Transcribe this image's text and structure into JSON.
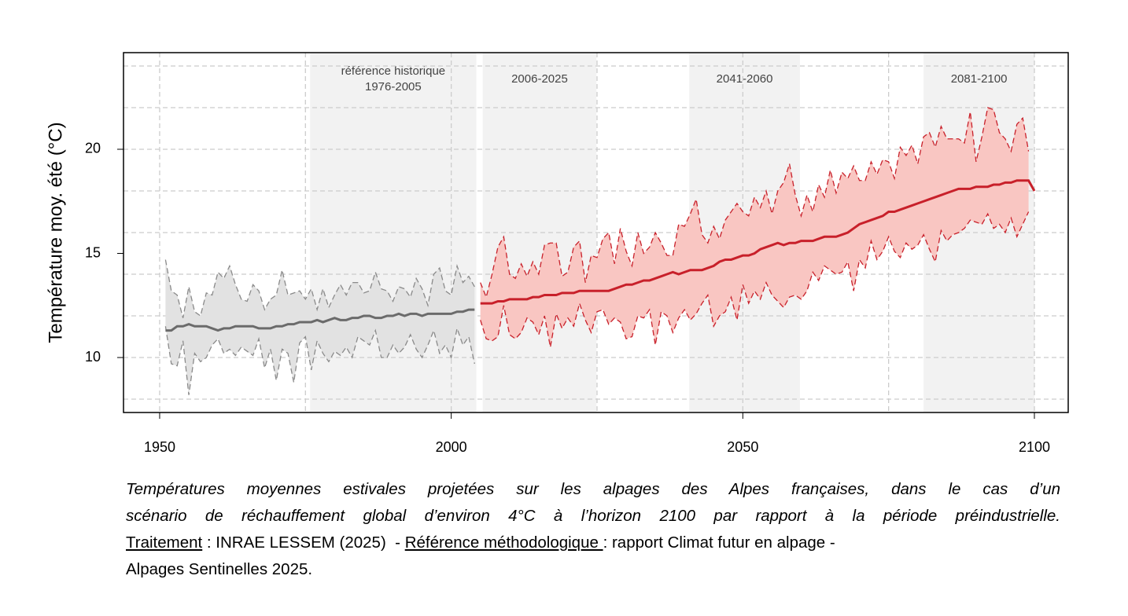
{
  "chart_data": {
    "type": "line",
    "ylabel": "Température moy. été (°C)",
    "xlim": [
      1943.8,
      2105.8
    ],
    "ylim": [
      7.36,
      24.64
    ],
    "xticks": [
      1950,
      2000,
      2050,
      2100
    ],
    "yticks": [
      10,
      15,
      20
    ],
    "xgrid": [
      1950,
      1975,
      2000,
      2025,
      2050,
      2075,
      2100
    ],
    "ygrid": [
      8,
      10,
      12,
      14,
      16,
      18,
      20,
      22,
      24
    ],
    "grid_color": "#cccccc",
    "period_color": "#f2f2f2",
    "periods": [
      {
        "label": [
          "référence historique",
          "1976-2005"
        ],
        "start": 1975.8,
        "end": 2004.3
      },
      {
        "label": [
          "2006-2025"
        ],
        "start": 2005.4,
        "end": 2024.9
      },
      {
        "label": [
          "2041-2060"
        ],
        "start": 2040.8,
        "end": 2059.8
      },
      {
        "label": [
          "2081-2100"
        ],
        "start": 2081.0,
        "end": 2100
      }
    ],
    "series": [
      {
        "color": "#6b6b6b",
        "band_color": "#e2e2e2",
        "range_color": "#8a8a8a",
        "x": [
          1951,
          1952,
          1953,
          1954,
          1955,
          1956,
          1957,
          1958,
          1959,
          1960,
          1961,
          1962,
          1963,
          1964,
          1965,
          1966,
          1967,
          1968,
          1969,
          1970,
          1971,
          1972,
          1973,
          1974,
          1975,
          1976,
          1977,
          1978,
          1979,
          1980,
          1981,
          1982,
          1983,
          1984,
          1985,
          1986,
          1987,
          1988,
          1989,
          1990,
          1991,
          1992,
          1993,
          1994,
          1995,
          1996,
          1997,
          1998,
          1999,
          2000,
          2001,
          2002,
          2003,
          2004
        ],
        "values": [
          11.3,
          11.3,
          11.5,
          11.5,
          11.6,
          11.5,
          11.5,
          11.5,
          11.4,
          11.3,
          11.4,
          11.4,
          11.5,
          11.5,
          11.5,
          11.5,
          11.4,
          11.4,
          11.4,
          11.5,
          11.5,
          11.6,
          11.6,
          11.7,
          11.7,
          11.7,
          11.8,
          11.7,
          11.8,
          11.9,
          11.8,
          11.8,
          11.9,
          11.9,
          12.0,
          12.0,
          11.9,
          11.9,
          12.0,
          12.0,
          12.1,
          12.0,
          12.1,
          12.1,
          12.0,
          12.1,
          12.1,
          12.1,
          12.1,
          12.1,
          12.2,
          12.2,
          12.3,
          12.3
        ],
        "high": [
          14.7,
          13.2,
          13.0,
          11.9,
          13.4,
          12.2,
          12.0,
          13.1,
          13.0,
          14.1,
          13.8,
          14.4,
          13.5,
          12.8,
          12.7,
          13.5,
          13.2,
          12.3,
          12.8,
          13.0,
          14.2,
          13.0,
          13.1,
          13.2,
          12.8,
          13.3,
          12.3,
          13.3,
          12.4,
          13.0,
          13.5,
          13.0,
          13.6,
          13.6,
          13.1,
          13.2,
          14.1,
          13.3,
          13.2,
          12.7,
          13.4,
          13.3,
          12.9,
          13.8,
          13.3,
          12.5,
          14.0,
          14.3,
          13.2,
          13.0,
          14.4,
          13.6,
          13.9,
          13.4
        ],
        "low": [
          11.5,
          9.7,
          9.6,
          10.8,
          8.2,
          10.2,
          9.8,
          10.0,
          10.6,
          10.9,
          10.2,
          10.4,
          10.1,
          10.5,
          10.3,
          10.1,
          10.9,
          9.5,
          10.4,
          8.9,
          10.4,
          10.2,
          8.8,
          10.7,
          11.0,
          9.4,
          10.8,
          10.2,
          9.8,
          10.3,
          10.1,
          10.5,
          10.0,
          11.0,
          10.8,
          10.6,
          11.3,
          10.0,
          10.0,
          10.6,
          10.2,
          10.5,
          11.1,
          10.4,
          10.0,
          10.6,
          11.3,
          10.2,
          10.6,
          10.0,
          11.4,
          10.6,
          11.0,
          9.7
        ]
      },
      {
        "color": "#c8202a",
        "band_color": "#f9c6c2",
        "range_color": "#c8202a",
        "x": [
          2005,
          2006,
          2007,
          2008,
          2009,
          2010,
          2011,
          2012,
          2013,
          2014,
          2015,
          2016,
          2017,
          2018,
          2019,
          2020,
          2021,
          2022,
          2023,
          2024,
          2025,
          2026,
          2027,
          2028,
          2029,
          2030,
          2031,
          2032,
          2033,
          2034,
          2035,
          2036,
          2037,
          2038,
          2039,
          2040,
          2041,
          2042,
          2043,
          2044,
          2045,
          2046,
          2047,
          2048,
          2049,
          2050,
          2051,
          2052,
          2053,
          2054,
          2055,
          2056,
          2057,
          2058,
          2059,
          2060,
          2061,
          2062,
          2063,
          2064,
          2065,
          2066,
          2067,
          2068,
          2069,
          2070,
          2071,
          2072,
          2073,
          2074,
          2075,
          2076,
          2077,
          2078,
          2079,
          2080,
          2081,
          2082,
          2083,
          2084,
          2085,
          2086,
          2087,
          2088,
          2089,
          2090,
          2091,
          2092,
          2093,
          2094,
          2095,
          2096,
          2097,
          2098,
          2099,
          2100
        ],
        "values": [
          12.6,
          12.6,
          12.6,
          12.7,
          12.7,
          12.8,
          12.8,
          12.8,
          12.8,
          12.9,
          12.9,
          13.0,
          13.0,
          13.0,
          13.1,
          13.1,
          13.1,
          13.2,
          13.2,
          13.2,
          13.2,
          13.2,
          13.2,
          13.3,
          13.4,
          13.5,
          13.5,
          13.6,
          13.7,
          13.7,
          13.8,
          13.9,
          14.0,
          14.1,
          14.0,
          14.1,
          14.2,
          14.2,
          14.2,
          14.3,
          14.4,
          14.6,
          14.7,
          14.7,
          14.8,
          14.9,
          14.9,
          15.0,
          15.2,
          15.3,
          15.4,
          15.5,
          15.4,
          15.5,
          15.5,
          15.6,
          15.6,
          15.6,
          15.7,
          15.8,
          15.8,
          15.8,
          15.9,
          16.0,
          16.2,
          16.4,
          16.5,
          16.6,
          16.7,
          16.8,
          17.0,
          17.0,
          17.1,
          17.2,
          17.3,
          17.4,
          17.5,
          17.6,
          17.7,
          17.8,
          17.9,
          18.0,
          18.1,
          18.1,
          18.1,
          18.2,
          18.2,
          18.2,
          18.3,
          18.3,
          18.4,
          18.4,
          18.5,
          18.5,
          18.5,
          18.0
        ],
        "high": [
          13.6,
          12.9,
          14.0,
          15.3,
          15.8,
          14.0,
          13.8,
          14.5,
          13.9,
          14.6,
          14.0,
          15.4,
          15.5,
          15.5,
          13.9,
          14.1,
          15.3,
          15.6,
          13.6,
          14.9,
          14.8,
          15.7,
          16.0,
          14.5,
          16.2,
          15.1,
          14.4,
          16.0,
          15.0,
          15.3,
          16.0,
          15.5,
          14.9,
          14.9,
          16.4,
          16.3,
          16.9,
          17.6,
          15.9,
          15.5,
          16.3,
          15.7,
          16.6,
          17.0,
          17.4,
          17.0,
          16.8,
          17.7,
          17.2,
          18.0,
          16.9,
          18.0,
          18.4,
          19.3,
          17.8,
          16.8,
          17.8,
          17.0,
          18.3,
          17.7,
          19.0,
          17.9,
          18.9,
          18.6,
          19.2,
          18.5,
          18.5,
          19.4,
          18.8,
          19.5,
          19.4,
          18.6,
          20.1,
          19.7,
          20.2,
          19.3,
          20.6,
          20.8,
          20.1,
          21.1,
          20.5,
          20.5,
          20.5,
          20.3,
          21.8,
          19.4,
          20.6,
          22.0,
          21.9,
          20.8,
          20.5,
          19.9,
          21.2,
          21.5,
          19.9,
          null
        ],
        "low": [
          11.8,
          10.9,
          10.8,
          11.0,
          12.5,
          11.1,
          10.9,
          11.2,
          11.9,
          11.7,
          11.1,
          12.0,
          10.5,
          12.1,
          11.4,
          11.9,
          11.5,
          12.6,
          11.8,
          11.2,
          12.2,
          12.3,
          11.6,
          11.9,
          11.7,
          10.9,
          11.0,
          12.0,
          11.9,
          12.3,
          10.6,
          12.2,
          12.0,
          11.2,
          11.9,
          12.3,
          11.8,
          12.1,
          12.6,
          13.0,
          11.5,
          12.0,
          12.2,
          12.9,
          11.8,
          13.5,
          12.6,
          13.2,
          12.8,
          13.6,
          13.0,
          12.7,
          12.4,
          12.9,
          13.0,
          12.8,
          13.2,
          14.1,
          13.7,
          14.4,
          14.2,
          14.0,
          14.1,
          14.6,
          13.2,
          14.7,
          14.3,
          15.6,
          14.7,
          15.1,
          15.8,
          15.1,
          14.8,
          15.5,
          15.2,
          15.4,
          15.9,
          15.2,
          14.6,
          16.1,
          15.6,
          15.9,
          16.0,
          16.2,
          16.6,
          16.5,
          16.4,
          16.9,
          16.2,
          16.4,
          16.0,
          16.7,
          15.8,
          16.4,
          17.0,
          null
        ]
      }
    ]
  },
  "caption": {
    "lines": [
      "Températures moyennes estivales projetées sur les alpages des Alpes françaises, dans le cas d’un",
      "scénario de réchauffement global d’environ 4°C à l’horizon 2100 par rapport à la période préindustrielle."
    ],
    "credit": [
      "Traitement",
      " : INRAE LESSEM (2025)  - ",
      "Référence méthodologique ",
      ": rapport Climat futur en alpage -"
    ],
    "last": "Alpages Sentinelles 2025."
  }
}
